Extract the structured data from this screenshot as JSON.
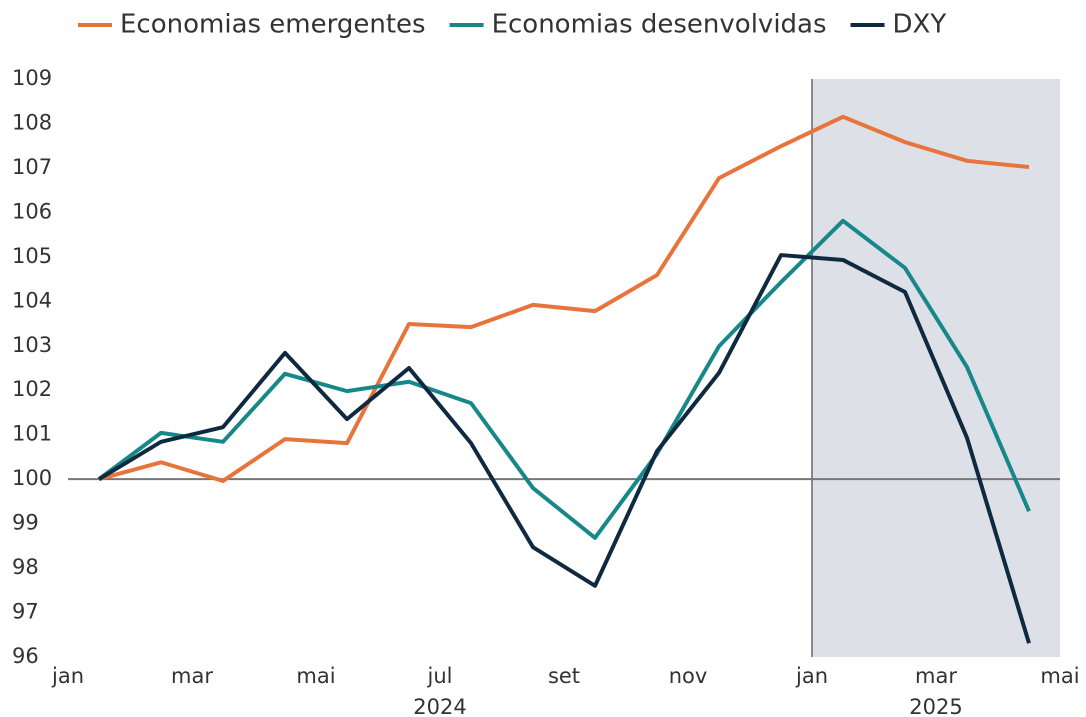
{
  "chart_data": {
    "type": "line",
    "x": [
      0.5,
      1.5,
      2.5,
      3.5,
      4.5,
      5.5,
      6.5,
      7.5,
      8.5,
      9.5,
      10.5,
      11.5,
      12.5,
      13.5,
      14.5,
      15.5
    ],
    "series": [
      {
        "name": "Economias emergentes",
        "color": "#e8743b",
        "values": [
          100,
          100.38,
          99.96,
          100.9,
          100.81,
          103.49,
          103.42,
          103.92,
          103.78,
          104.59,
          106.77,
          107.49,
          108.15,
          107.58,
          107.16,
          107.02
        ]
      },
      {
        "name": "Economias desenvolvidas",
        "color": "#17888a",
        "values": [
          100,
          101.04,
          100.84,
          102.37,
          101.98,
          102.19,
          101.71,
          99.8,
          98.68,
          100.57,
          102.99,
          104.43,
          105.81,
          104.75,
          102.52,
          99.28
        ]
      },
      {
        "name": "DXY",
        "color": "#0f2a40",
        "values": [
          100,
          100.84,
          101.17,
          102.84,
          101.35,
          102.5,
          100.81,
          98.47,
          97.6,
          100.63,
          102.39,
          105.04,
          104.93,
          104.21,
          100.93,
          96.31
        ]
      }
    ],
    "xlim": [
      0,
      16
    ],
    "xticks": [
      {
        "value": 0,
        "label": "jan"
      },
      {
        "value": 2,
        "label": "mar"
      },
      {
        "value": 4,
        "label": "mai"
      },
      {
        "value": 6,
        "label": "jul"
      },
      {
        "value": 8,
        "label": "set"
      },
      {
        "value": 10,
        "label": "nov"
      },
      {
        "value": 12,
        "label": "jan"
      },
      {
        "value": 14,
        "label": "mar"
      },
      {
        "value": 16,
        "label": "mai"
      }
    ],
    "year_labels": [
      {
        "value": 6,
        "label": "2024"
      },
      {
        "value": 14,
        "label": "2025"
      }
    ],
    "ylim": [
      96,
      109
    ],
    "yticks": [
      96,
      97,
      98,
      99,
      100,
      101,
      102,
      103,
      104,
      105,
      106,
      107,
      108,
      109
    ],
    "reference_y": 100,
    "shaded_from": 12,
    "shade_color": "#dde0e6",
    "legend": "top"
  }
}
